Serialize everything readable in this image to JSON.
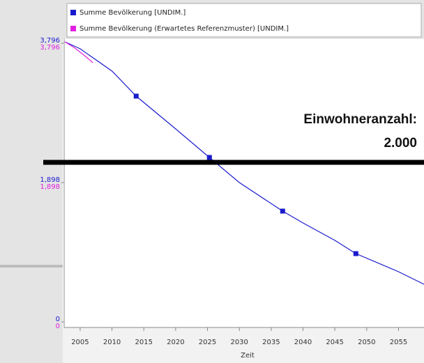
{
  "chart_data": {
    "type": "line",
    "xlabel": "Zeit",
    "xlim": [
      2002.6,
      2059
    ],
    "xticks": [
      2005,
      2010,
      2015,
      2020,
      2025,
      2030,
      2035,
      2040,
      2045,
      2050,
      2055
    ],
    "ylim": [
      -76,
      3853
    ],
    "yticks": [
      0,
      {
        "value": 1898,
        "label": "1,898"
      },
      {
        "value": 3796,
        "label": "3,796"
      }
    ],
    "y2lim": [
      -76,
      3853
    ],
    "y2ticks": [
      0,
      {
        "value": 1898,
        "label": "1,898"
      },
      {
        "value": 3796,
        "label": "3,796"
      }
    ],
    "series": [
      {
        "name": "Summe Bevölkerung [UNDIM.]",
        "color": "#1a1acc",
        "x": [
          2002.6,
          2005,
          2010,
          2013.8,
          2020,
          2025.3,
          2030,
          2036.8,
          2040,
          2045,
          2048.3,
          2055,
          2059
        ],
        "values": [
          3815,
          3720,
          3416,
          3075,
          2629,
          2240,
          1898,
          1509,
          1348,
          1110,
          930,
          683,
          512
        ],
        "marker_x": [
          2013.8,
          2025.3,
          2036.8,
          2048.3
        ],
        "marker_values": [
          3075,
          2240,
          1509,
          930
        ]
      },
      {
        "name": "Summe Bevölkerung (Erwartetes Referenzmuster) [UNDIM.]",
        "color": "#e020e0",
        "axis": "y2",
        "x": [
          2002.6,
          2004,
          2005.5,
          2007
        ],
        "values": [
          3815,
          3740,
          3640,
          3530
        ]
      }
    ],
    "annotations": [
      "Einwohneranzahl:",
      "2.000"
    ]
  }
}
